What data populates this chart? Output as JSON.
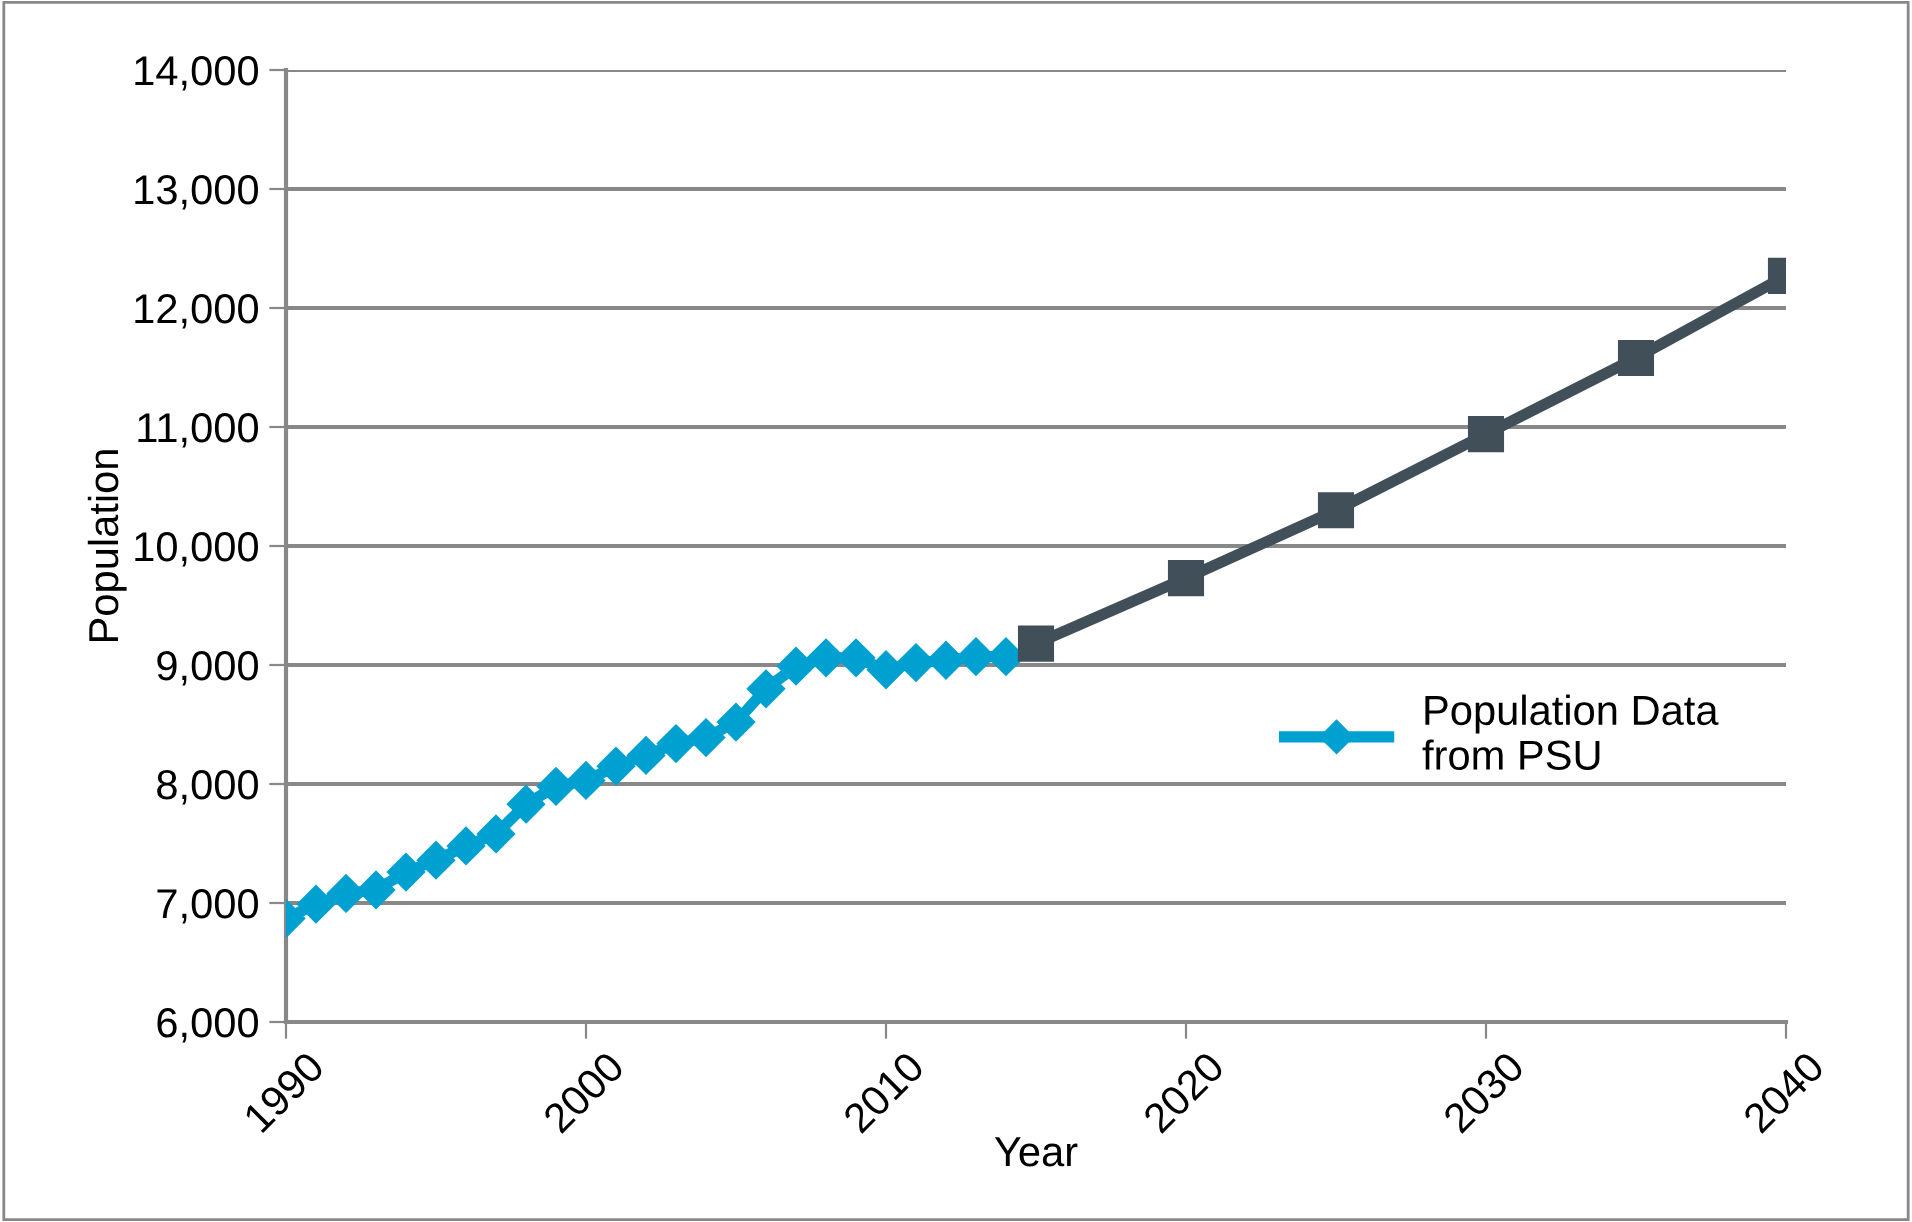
{
  "chart_data": {
    "type": "line",
    "xlabel": "Year",
    "ylabel": "Population",
    "series": [
      {
        "name": "Population Data\nfrom PSU",
        "color": "#00a0d0",
        "marker": "diamond",
        "x": [
          1990,
          1991,
          1992,
          1993,
          1994,
          1995,
          1996,
          1997,
          1998,
          1999,
          2000,
          2001,
          2002,
          2003,
          2004,
          2005,
          2006,
          2007,
          2008,
          2009,
          2010,
          2011,
          2012,
          2013,
          2014
        ],
        "values": [
          6870,
          6990,
          7080,
          7110,
          7260,
          7360,
          7480,
          7580,
          7830,
          7980,
          8030,
          8150,
          8240,
          8340,
          8390,
          8520,
          8800,
          8990,
          9060,
          9060,
          8960,
          9020,
          9040,
          9070,
          9070
        ]
      },
      {
        "color": "#414f59",
        "marker": "square",
        "x": [
          2015,
          2020,
          2025,
          2030,
          2035,
          2040
        ],
        "values": [
          9180,
          9730,
          10300,
          10940,
          11580,
          12270
        ]
      }
    ],
    "xlim": [
      1990,
      2040
    ],
    "xticks": [
      1990,
      2000,
      2010,
      2020,
      2030,
      2040
    ],
    "ylim": [
      6000,
      14000
    ],
    "yticks": [
      {
        "value": 6000,
        "label": "6,000"
      },
      {
        "value": 7000,
        "label": "7,000"
      },
      {
        "value": 8000,
        "label": "8,000"
      },
      {
        "value": 9000,
        "label": "9,000"
      },
      {
        "value": 10000,
        "label": "10,000"
      },
      {
        "value": 11000,
        "label": "11,000"
      },
      {
        "value": 12000,
        "label": "12,000"
      },
      {
        "value": 13000,
        "label": "13,000"
      },
      {
        "value": 14000,
        "label": "14,000"
      }
    ],
    "grid": "y",
    "legend": "center right",
    "line_style": "solid"
  }
}
